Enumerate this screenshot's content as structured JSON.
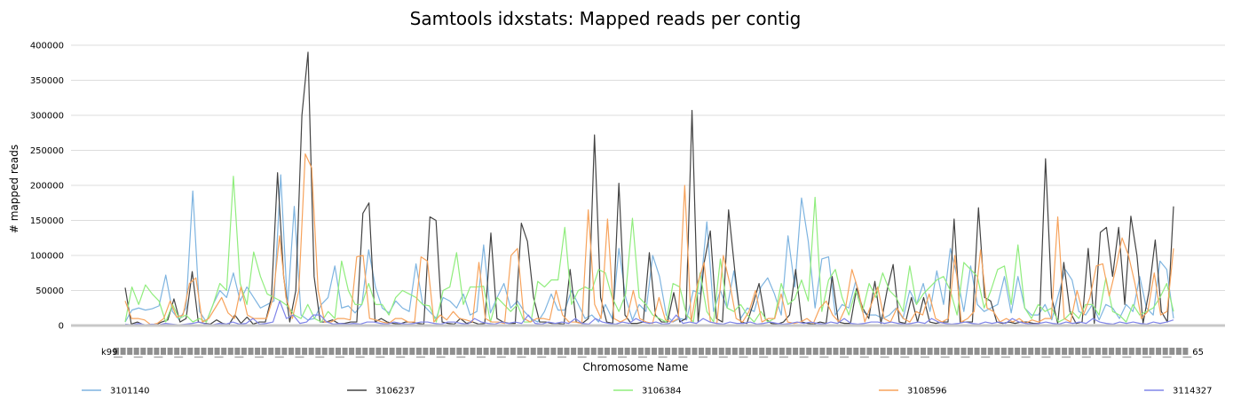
{
  "chart_data": {
    "type": "line",
    "title": "Samtools idxstats: Mapped reads per contig",
    "xlabel": "Chromosome Name",
    "ylabel": "# mapped reads",
    "ylim": [
      0,
      400000
    ],
    "yticks": [
      0,
      50000,
      100000,
      150000,
      200000,
      250000,
      300000,
      350000,
      400000
    ],
    "grid": true,
    "legend_position": "bottom",
    "x_tick_start": "k99",
    "x_tick_end": "65",
    "series": [
      {
        "name": "3101140",
        "color": "#7eb4e0",
        "values": [
          5000,
          22000,
          25000,
          22000,
          24000,
          28000,
          72000,
          20000,
          8000,
          25000,
          192000,
          20000,
          5000,
          30000,
          50000,
          40000,
          75000,
          35000,
          55000,
          40000,
          25000,
          30000,
          35000,
          215000,
          25000,
          170000,
          15000,
          8000,
          10000,
          30000,
          40000,
          85000,
          25000,
          28000,
          18000,
          30000,
          108000,
          55000,
          25000,
          18000,
          35000,
          25000,
          20000,
          88000,
          30000,
          20000,
          10000,
          40000,
          35000,
          25000,
          45000,
          15000,
          20000,
          115000,
          18000,
          40000,
          60000,
          25000,
          35000,
          20000,
          10000,
          5000,
          20000,
          45000,
          22000,
          22000,
          50000,
          30000,
          10000,
          15000,
          5000,
          30000,
          10000,
          110000,
          40000,
          8000,
          30000,
          20000,
          100000,
          70000,
          15000,
          5000,
          10000,
          8000,
          50000,
          45000,
          148000,
          20000,
          50000,
          25000,
          78000,
          10000,
          25000,
          20000,
          55000,
          68000,
          45000,
          15000,
          128000,
          55000,
          182000,
          120000,
          25000,
          95000,
          98000,
          15000,
          30000,
          25000,
          63000,
          20000,
          15000,
          15000,
          10000,
          15000,
          25000,
          10000,
          50000,
          30000,
          60000,
          20000,
          78000,
          30000,
          110000,
          70000,
          20000,
          85000,
          30000,
          20000,
          25000,
          30000,
          70000,
          18000,
          70000,
          25000,
          15000,
          15000,
          30000,
          8000,
          45000,
          80000,
          65000,
          20000,
          15000,
          30000,
          8000,
          30000,
          25000,
          10000,
          30000,
          20000,
          70000,
          25000,
          15000,
          92000,
          80000,
          10000
        ]
      },
      {
        "name": "3106237",
        "color": "#434343",
        "values": [
          54000,
          2000,
          5000,
          1000,
          0,
          1000,
          5000,
          8000,
          38000,
          5000,
          10000,
          77000,
          5000,
          3000,
          2000,
          8000,
          3000,
          1000,
          15000,
          3000,
          12000,
          2000,
          5000,
          5000,
          40000,
          218000,
          70000,
          5000,
          50000,
          300000,
          390000,
          70000,
          5000,
          5000,
          8000,
          3000,
          3000,
          5000,
          5000,
          160000,
          175000,
          5000,
          10000,
          5000,
          3000,
          2000,
          5000,
          5000,
          3000,
          2000,
          155000,
          150000,
          5000,
          3000,
          2000,
          10000,
          3000,
          5000,
          2000,
          3000,
          132000,
          10000,
          5000,
          3000,
          3000,
          146000,
          120000,
          40000,
          5000,
          5000,
          3000,
          3000,
          2000,
          80000,
          5000,
          3000,
          10000,
          272000,
          40000,
          5000,
          3000,
          203000,
          15000,
          3000,
          3000,
          5000,
          104000,
          15000,
          5000,
          5000,
          47000,
          5000,
          10000,
          307000,
          5000,
          90000,
          135000,
          10000,
          5000,
          165000,
          80000,
          5000,
          3000,
          30000,
          60000,
          10000,
          3000,
          2000,
          5000,
          15000,
          80000,
          5000,
          3000,
          2000,
          5000,
          3000,
          70000,
          5000,
          3000,
          3000,
          53000,
          25000,
          10000,
          63000,
          3000,
          50000,
          87000,
          5000,
          3000,
          40000,
          5000,
          40000,
          5000,
          3000,
          5000,
          5000,
          152000,
          5000,
          5000,
          5000,
          168000,
          40000,
          35000,
          5000,
          3000,
          5000,
          3000,
          5000,
          5000,
          3000,
          3000,
          238000,
          40000,
          3000,
          90000,
          20000,
          3000,
          5000,
          110000,
          3000,
          133000,
          140000,
          70000,
          140000,
          30000,
          156000,
          100000,
          3000,
          50000,
          122000,
          20000,
          5000,
          170000
        ]
      },
      {
        "name": "3106384",
        "color": "#90ed7d",
        "values": [
          5000,
          55000,
          30000,
          58000,
          45000,
          35000,
          5000,
          30000,
          10000,
          15000,
          5000,
          10000,
          5000,
          30000,
          60000,
          50000,
          213000,
          60000,
          30000,
          105000,
          70000,
          45000,
          40000,
          35000,
          28000,
          15000,
          10000,
          30000,
          10000,
          5000,
          20000,
          10000,
          92000,
          50000,
          30000,
          30000,
          60000,
          30000,
          30000,
          15000,
          40000,
          50000,
          45000,
          40000,
          30000,
          28000,
          5000,
          50000,
          55000,
          104000,
          30000,
          55000,
          55000,
          56000,
          5000,
          40000,
          30000,
          20000,
          30000,
          5000,
          5000,
          63000,
          55000,
          65000,
          65000,
          140000,
          30000,
          50000,
          55000,
          50000,
          80000,
          75000,
          40000,
          20000,
          45000,
          153000,
          40000,
          30000,
          15000,
          10000,
          5000,
          60000,
          55000,
          15000,
          5000,
          75000,
          20000,
          5000,
          95000,
          25000,
          20000,
          30000,
          15000,
          5000,
          20000,
          5000,
          10000,
          60000,
          30000,
          38000,
          65000,
          35000,
          183000,
          20000,
          65000,
          80000,
          40000,
          15000,
          50000,
          20000,
          60000,
          40000,
          75000,
          50000,
          40000,
          20000,
          85000,
          30000,
          45000,
          55000,
          65000,
          70000,
          50000,
          15000,
          90000,
          80000,
          70000,
          25000,
          50000,
          80000,
          85000,
          30000,
          115000,
          25000,
          10000,
          30000,
          20000,
          25000,
          5000,
          10000,
          20000,
          10000,
          30000,
          30000,
          15000,
          68000,
          20000,
          15000,
          5000,
          30000,
          15000,
          20000,
          25000,
          40000,
          60000,
          20000
        ]
      },
      {
        "name": "3108596",
        "color": "#f7a35c",
        "values": [
          35000,
          10000,
          10000,
          8000,
          1000,
          3000,
          10000,
          35000,
          12000,
          15000,
          60000,
          68000,
          5000,
          10000,
          25000,
          40000,
          18000,
          10000,
          55000,
          15000,
          10000,
          10000,
          10000,
          40000,
          128000,
          40000,
          10000,
          50000,
          245000,
          225000,
          50000,
          5000,
          5000,
          10000,
          10000,
          8000,
          98000,
          100000,
          10000,
          8000,
          5000,
          3000,
          10000,
          10000,
          5000,
          5000,
          98000,
          92000,
          5000,
          15000,
          8000,
          20000,
          10000,
          8000,
          5000,
          90000,
          10000,
          5000,
          5000,
          3000,
          100000,
          110000,
          10000,
          5000,
          10000,
          10000,
          8000,
          50000,
          15000,
          5000,
          5000,
          3000,
          165000,
          30000,
          10000,
          152000,
          10000,
          5000,
          10000,
          50000,
          10000,
          5000,
          3000,
          40000,
          8000,
          5000,
          10000,
          200000,
          5000,
          60000,
          90000,
          5000,
          3000,
          100000,
          60000,
          10000,
          5000,
          20000,
          50000,
          5000,
          10000,
          10000,
          45000,
          5000,
          3000,
          5000,
          10000,
          3000,
          25000,
          35000,
          15000,
          5000,
          25000,
          80000,
          50000,
          5000,
          30000,
          55000,
          10000,
          5000,
          25000,
          10000,
          5000,
          20000,
          15000,
          45000,
          10000,
          5000,
          10000,
          100000,
          5000,
          10000,
          20000,
          108000,
          25000,
          20000,
          5000,
          10000,
          5000,
          10000,
          3000,
          8000,
          5000,
          10000,
          10000,
          155000,
          10000,
          5000,
          50000,
          15000,
          40000,
          85000,
          88000,
          42000,
          80000,
          125000,
          100000,
          60000,
          10000,
          20000,
          75000,
          15000,
          20000,
          110000
        ]
      },
      {
        "name": "3114327",
        "color": "#8085e9",
        "values": [
          2000,
          1000,
          3000,
          1000,
          2000,
          1000,
          3000,
          2000,
          1000,
          2000,
          3000,
          5000,
          2000,
          1000,
          3000,
          2000,
          5000,
          2000,
          3000,
          10000,
          2000,
          3000,
          5000,
          35000,
          10000,
          15000,
          3000,
          5000,
          15000,
          15000,
          5000,
          2000,
          3000,
          2000,
          3000,
          2000,
          5000,
          5000,
          3000,
          2000,
          5000,
          3000,
          2000,
          3000,
          5000,
          5000,
          3000,
          2000,
          5000,
          5000,
          3000,
          2000,
          10000,
          5000,
          3000,
          2000,
          5000,
          3000,
          5000,
          3000,
          15000,
          3000,
          2000,
          5000,
          3000,
          5000,
          3000,
          10000,
          3000,
          2000,
          10000,
          5000,
          3000,
          2000,
          5000,
          3000,
          10000,
          5000,
          3000,
          5000,
          2000,
          3000,
          15000,
          3000,
          5000,
          3000,
          10000,
          5000,
          3000,
          2000,
          5000,
          3000,
          3000,
          5000,
          2000,
          3000,
          5000,
          3000,
          2000,
          3000,
          5000,
          3000,
          5000,
          3000,
          2000,
          5000,
          3000,
          10000,
          3000,
          2000,
          3000,
          5000,
          5000,
          3000,
          5000,
          3000,
          2000,
          3000,
          5000,
          3000,
          10000,
          5000,
          3000,
          2000,
          3000,
          5000,
          3000,
          2000,
          5000,
          3000,
          5000,
          3000,
          10000,
          5000,
          3000,
          2000,
          3000,
          5000,
          3000,
          2000,
          5000,
          3000,
          5000,
          3000,
          10000,
          5000,
          3000,
          2000,
          5000,
          3000,
          5000,
          3000,
          2000,
          5000,
          3000,
          5000,
          8000
        ]
      }
    ]
  }
}
